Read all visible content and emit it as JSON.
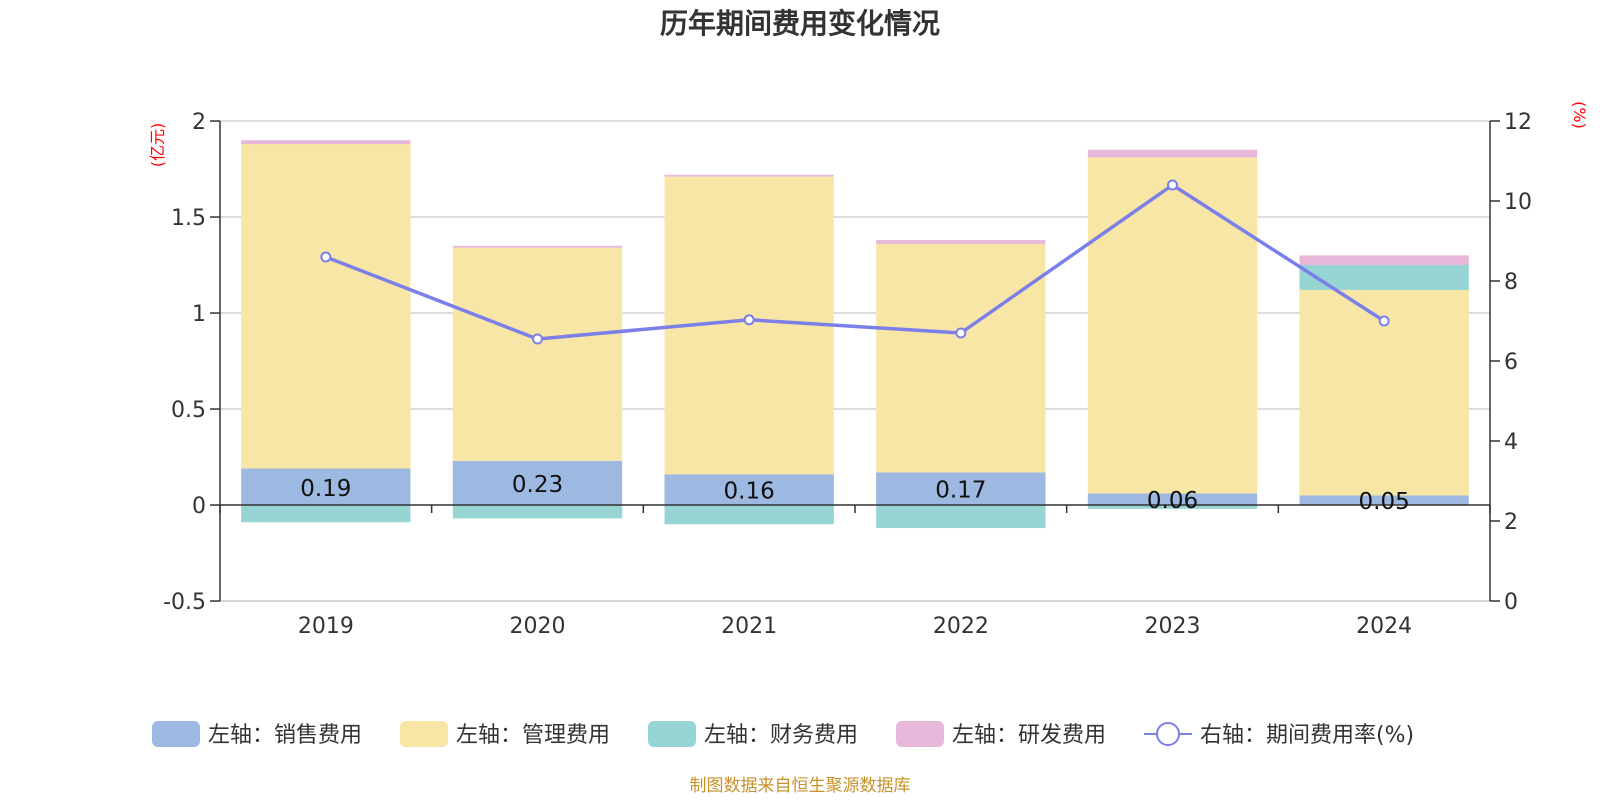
{
  "chart_data": {
    "type": "bar",
    "title": "历年期间费用变化情况",
    "categories": [
      "2019",
      "2020",
      "2021",
      "2022",
      "2023",
      "2024"
    ],
    "left_axis": {
      "unit": "(亿元)",
      "ylim": [
        -0.5,
        2
      ],
      "ticks": [
        "2",
        "1.5",
        "1",
        "0.5",
        "0",
        "-0.5"
      ],
      "tick_values": [
        2,
        1.5,
        1,
        0.5,
        0,
        -0.5
      ]
    },
    "right_axis": {
      "unit": "(%)",
      "ylim": [
        0,
        12
      ],
      "ticks": [
        "12",
        "10",
        "8",
        "6",
        "4",
        "2",
        "0"
      ],
      "tick_values": [
        12,
        10,
        8,
        6,
        4,
        2,
        0
      ]
    },
    "series": [
      {
        "name": "左轴：销售费用",
        "type": "bar",
        "axis": "left",
        "color": "#9db8e1",
        "values": [
          0.19,
          0.23,
          0.16,
          0.17,
          0.06,
          0.05
        ],
        "labels": [
          "0.19",
          "0.23",
          "0.16",
          "0.17",
          "0.06",
          "0.05"
        ]
      },
      {
        "name": "左轴：管理费用",
        "type": "bar",
        "axis": "left",
        "color": "#f8e6a6",
        "values": [
          1.69,
          1.11,
          1.55,
          1.19,
          1.75,
          1.07
        ]
      },
      {
        "name": "左轴：财务费用",
        "type": "bar",
        "axis": "left",
        "color": "#97d5d5",
        "values": [
          -0.09,
          -0.07,
          -0.1,
          -0.12,
          -0.02,
          0.13
        ]
      },
      {
        "name": "左轴：研发费用",
        "type": "bar",
        "axis": "left",
        "color": "#e8b8db",
        "values": [
          0.02,
          0.01,
          0.01,
          0.02,
          0.04,
          0.05
        ]
      },
      {
        "name": "右轴：期间费用率(%)",
        "type": "line",
        "axis": "right",
        "color": "#7b7fe8",
        "values": [
          8.6,
          6.55,
          7.03,
          6.7,
          10.4,
          7.0
        ]
      }
    ],
    "grid": true,
    "legend_position": "bottom"
  },
  "source_note": "制图数据来自恒生聚源数据库"
}
